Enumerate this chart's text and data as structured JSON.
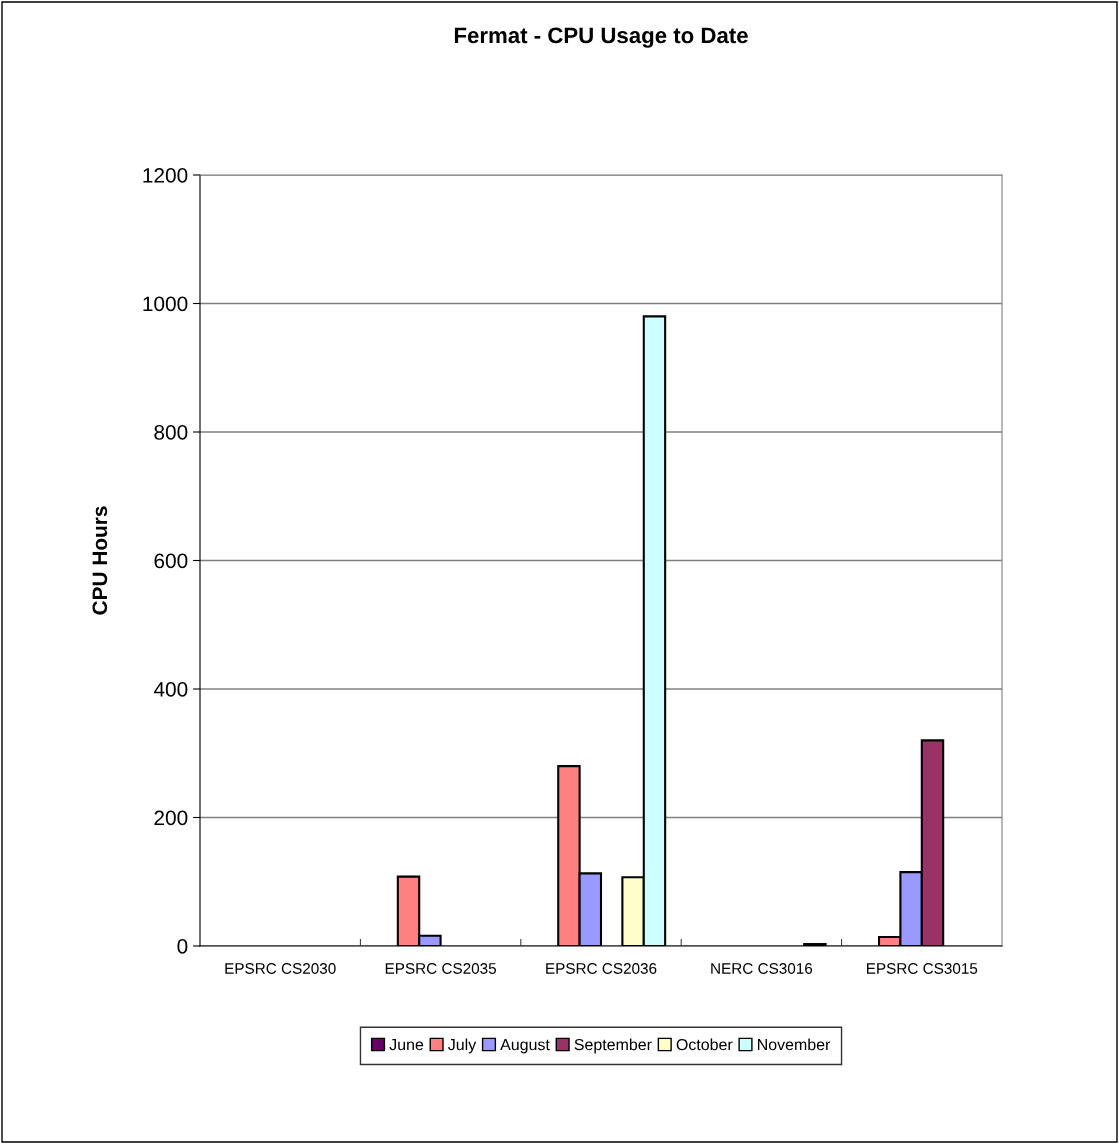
{
  "chart_data": {
    "type": "bar",
    "title": "Fermat - CPU Usage to Date",
    "ylabel": "CPU Hours",
    "categories": [
      "EPSRC CS2030",
      "EPSRC CS2035",
      "EPSRC CS2036",
      "NERC CS3016",
      "EPSRC CS3015"
    ],
    "series": [
      {
        "name": "June",
        "color": "#660066",
        "values": [
          null,
          null,
          null,
          null,
          null
        ]
      },
      {
        "name": "July",
        "color": "#ff8080",
        "values": [
          null,
          108,
          280,
          null,
          14
        ]
      },
      {
        "name": "August",
        "color": "#9999ff",
        "values": [
          null,
          16,
          113,
          null,
          115
        ]
      },
      {
        "name": "September",
        "color": "#993366",
        "values": [
          null,
          null,
          null,
          null,
          320
        ]
      },
      {
        "name": "October",
        "color": "#ffffcc",
        "values": [
          null,
          null,
          107,
          null,
          null
        ]
      },
      {
        "name": "November",
        "color": "#ccffff",
        "values": [
          null,
          null,
          980,
          3,
          null
        ]
      }
    ],
    "ylim": [
      0,
      1200
    ],
    "yticks": [
      0,
      200,
      400,
      600,
      800,
      1000,
      1200
    ],
    "grid": "y",
    "legend": "bottom"
  }
}
